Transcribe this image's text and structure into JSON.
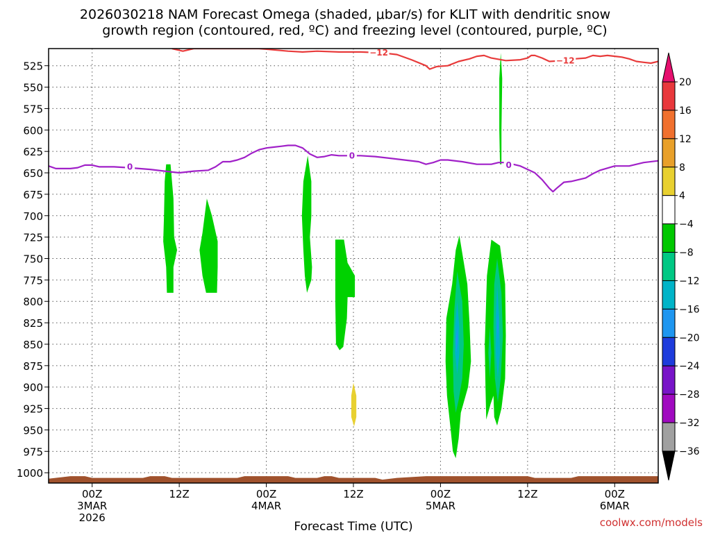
{
  "chart_data": {
    "type": "contour",
    "title_line1": "2026030218 NAM Forecast Omega (shaded, μbar/s) for KLIT with dendritic snow",
    "title_line2": "growth region (contoured, red, ºC) and freezing level (contoured, purple, ºC)",
    "xlabel": "Forecast Time (UTC)",
    "credit": "coolwx.com/models",
    "y_axis": {
      "scale": "pressure (hPa), increasing downward",
      "ylim": [
        505,
        1012
      ],
      "ticks": [
        525,
        550,
        575,
        600,
        625,
        650,
        675,
        700,
        725,
        750,
        775,
        800,
        825,
        850,
        875,
        900,
        925,
        950,
        975,
        1000
      ]
    },
    "x_axis": {
      "unit": "forecast hours from 2026-03-02 18Z",
      "xlim": [
        0,
        84
      ],
      "ticks": [
        {
          "x": 6,
          "lines": [
            "00Z",
            "3MAR",
            "2026"
          ]
        },
        {
          "x": 18,
          "lines": [
            "12Z"
          ]
        },
        {
          "x": 30,
          "lines": [
            "00Z",
            "4MAR"
          ]
        },
        {
          "x": 42,
          "lines": [
            "12Z"
          ]
        },
        {
          "x": 54,
          "lines": [
            "00Z",
            "5MAR"
          ]
        },
        {
          "x": 66,
          "lines": [
            "12Z"
          ]
        },
        {
          "x": 78,
          "lines": [
            "00Z",
            "6MAR"
          ]
        }
      ]
    },
    "grid": true,
    "colorbar": {
      "labels": [
        "20",
        "16",
        "12",
        "8",
        "4",
        "−4",
        "−8",
        "−12",
        "−16",
        "−20",
        "−24",
        "−28",
        "−32",
        "−36"
      ],
      "colors": [
        "#e60f6e",
        "#e8383c",
        "#f0702e",
        "#e8a02a",
        "#e8d030",
        "#ffffff",
        "#00c800",
        "#00c884",
        "#00b4c8",
        "#1e96f0",
        "#1e3cdc",
        "#7814c8",
        "#a00ac0",
        "#a0a0a0",
        "#000000"
      ]
    },
    "dgz_contour": {
      "label": "−12",
      "color": "#e83a3a",
      "points": [
        [
          17,
          505
        ],
        [
          18.5,
          508
        ],
        [
          20,
          505
        ],
        [
          29,
          505
        ],
        [
          33,
          508
        ],
        [
          35,
          509
        ],
        [
          37,
          508
        ],
        [
          40,
          509
        ],
        [
          43,
          509
        ],
        [
          46,
          510
        ],
        [
          48,
          512
        ],
        [
          50,
          518
        ],
        [
          52,
          525
        ],
        [
          52.5,
          529
        ],
        [
          53.5,
          526
        ],
        [
          55,
          525
        ],
        [
          56.5,
          520
        ],
        [
          58,
          517
        ],
        [
          59,
          514
        ],
        [
          60,
          513
        ],
        [
          61,
          516
        ],
        [
          63,
          519
        ],
        [
          65,
          518
        ],
        [
          66,
          516
        ],
        [
          66.5,
          513
        ],
        [
          67,
          513
        ],
        [
          68,
          516
        ],
        [
          69,
          520
        ],
        [
          71,
          519
        ],
        [
          72.5,
          517
        ],
        [
          74,
          516
        ],
        [
          75,
          513
        ],
        [
          76,
          514
        ],
        [
          77,
          513
        ],
        [
          79,
          515
        ],
        [
          80,
          517
        ],
        [
          81,
          520
        ],
        [
          82,
          521
        ],
        [
          83,
          522
        ],
        [
          84,
          520
        ]
      ],
      "label_positions": [
        [
          45.5,
          510
        ],
        [
          71.2,
          519
        ]
      ]
    },
    "freezing_level": {
      "label": "0",
      "color": "#a020c8",
      "points": [
        [
          0,
          642
        ],
        [
          1,
          645
        ],
        [
          3,
          645
        ],
        [
          4,
          644
        ],
        [
          5,
          641
        ],
        [
          6,
          641
        ],
        [
          7,
          643
        ],
        [
          9,
          643
        ],
        [
          11,
          644
        ],
        [
          14,
          646
        ],
        [
          16,
          648
        ],
        [
          18,
          650
        ],
        [
          20,
          648
        ],
        [
          22,
          647
        ],
        [
          23,
          643
        ],
        [
          24,
          637
        ],
        [
          25,
          637
        ],
        [
          26,
          635
        ],
        [
          27,
          632
        ],
        [
          28,
          627
        ],
        [
          29,
          623
        ],
        [
          30,
          621
        ],
        [
          31,
          620
        ],
        [
          32,
          619
        ],
        [
          33,
          618
        ],
        [
          34,
          618
        ],
        [
          35,
          621
        ],
        [
          36,
          628
        ],
        [
          37,
          632
        ],
        [
          38,
          631
        ],
        [
          39,
          629
        ],
        [
          40,
          630
        ],
        [
          41,
          630
        ],
        [
          43,
          630
        ],
        [
          45,
          631
        ],
        [
          47,
          633
        ],
        [
          49,
          635
        ],
        [
          51,
          637
        ],
        [
          52,
          640
        ],
        [
          53,
          638
        ],
        [
          54,
          635
        ],
        [
          55,
          635
        ],
        [
          57,
          637
        ],
        [
          59,
          640
        ],
        [
          61,
          640
        ],
        [
          62,
          638
        ],
        [
          63,
          638
        ],
        [
          64,
          640
        ],
        [
          65,
          642
        ],
        [
          66,
          646
        ],
        [
          67,
          650
        ],
        [
          68,
          658
        ],
        [
          69,
          668
        ],
        [
          69.5,
          672
        ],
        [
          70,
          668
        ],
        [
          71,
          661
        ],
        [
          72,
          660
        ],
        [
          74,
          656
        ],
        [
          75,
          651
        ],
        [
          76,
          647
        ],
        [
          78,
          642
        ],
        [
          80,
          642
        ],
        [
          82,
          638
        ],
        [
          84,
          636
        ]
      ],
      "label_positions": [
        [
          11.2,
          643
        ],
        [
          41.8,
          630
        ],
        [
          63.4,
          641
        ]
      ]
    },
    "omega_regions": [
      {
        "level": "-4 to -8",
        "color": "#00d200",
        "points": [
          [
            16.2,
            640
          ],
          [
            16.8,
            640
          ],
          [
            17.2,
            680
          ],
          [
            17.3,
            725
          ],
          [
            17.7,
            740
          ],
          [
            17.2,
            760
          ],
          [
            17.2,
            790
          ],
          [
            16.3,
            790
          ],
          [
            16.2,
            760
          ],
          [
            15.8,
            730
          ],
          [
            15.9,
            700
          ],
          [
            16.0,
            660
          ]
        ]
      },
      {
        "level": "-4 to -8",
        "color": "#00d200",
        "points": [
          [
            21.8,
            680
          ],
          [
            22.5,
            700
          ],
          [
            23.3,
            730
          ],
          [
            23.3,
            760
          ],
          [
            23.2,
            790
          ],
          [
            21.7,
            790
          ],
          [
            21.2,
            770
          ],
          [
            20.8,
            740
          ],
          [
            21.2,
            720
          ]
        ]
      },
      {
        "level": "-4 to -8",
        "color": "#00d200",
        "points": [
          [
            35.7,
            630
          ],
          [
            36.2,
            660
          ],
          [
            36.2,
            700
          ],
          [
            36.0,
            725
          ],
          [
            36.3,
            760
          ],
          [
            36.2,
            775
          ],
          [
            35.6,
            790
          ],
          [
            35.3,
            770
          ],
          [
            35.1,
            740
          ],
          [
            34.9,
            700
          ],
          [
            35.1,
            660
          ]
        ]
      },
      {
        "level": "-4 to -8",
        "color": "#00d200",
        "points": [
          [
            39.5,
            728
          ],
          [
            40.7,
            728
          ],
          [
            41.2,
            755
          ],
          [
            42.2,
            770
          ],
          [
            42.2,
            795
          ],
          [
            41.2,
            795
          ],
          [
            41.1,
            820
          ],
          [
            40.6,
            853
          ],
          [
            40.1,
            857
          ],
          [
            39.6,
            850
          ],
          [
            39.5,
            800
          ]
        ]
      },
      {
        "level": "-4 to -8",
        "color": "#00d200",
        "points": [
          [
            56.6,
            723
          ],
          [
            57.7,
            780
          ],
          [
            58.0,
            825
          ],
          [
            58.2,
            870
          ],
          [
            57.8,
            900
          ],
          [
            56.8,
            930
          ],
          [
            56.5,
            960
          ],
          [
            56.1,
            983
          ],
          [
            55.7,
            975
          ],
          [
            55.4,
            950
          ],
          [
            54.9,
            910
          ],
          [
            54.7,
            870
          ],
          [
            54.8,
            820
          ],
          [
            55.6,
            780
          ],
          [
            56.1,
            740
          ]
        ]
      },
      {
        "level": "-8 to -12",
        "color": "#00c884",
        "points": [
          [
            56.3,
            765
          ],
          [
            57.0,
            800
          ],
          [
            57.2,
            850
          ],
          [
            57.0,
            890
          ],
          [
            56.5,
            915
          ],
          [
            56.1,
            930
          ],
          [
            55.8,
            905
          ],
          [
            55.7,
            860
          ],
          [
            55.9,
            810
          ]
        ]
      },
      {
        "level": "-12 to -16",
        "color": "#00b4c8",
        "points": [
          [
            56.3,
            800
          ],
          [
            56.6,
            830
          ],
          [
            56.6,
            860
          ],
          [
            56.3,
            885
          ],
          [
            56.0,
            860
          ],
          [
            56.0,
            830
          ]
        ]
      },
      {
        "level": "-16 to -20",
        "color": "#1e96f0",
        "points": [
          [
            56.3,
            830
          ],
          [
            56.4,
            845
          ],
          [
            56.2,
            860
          ],
          [
            56.1,
            845
          ]
        ]
      },
      {
        "level": "-4 to -8",
        "color": "#00d200",
        "points": [
          [
            61.0,
            728
          ],
          [
            62.2,
            735
          ],
          [
            62.9,
            780
          ],
          [
            63.0,
            840
          ],
          [
            62.9,
            890
          ],
          [
            62.4,
            925
          ],
          [
            61.8,
            945
          ],
          [
            61.4,
            935
          ],
          [
            61.3,
            910
          ],
          [
            60.9,
            920
          ],
          [
            60.3,
            938
          ],
          [
            60.2,
            900
          ],
          [
            60.1,
            850
          ],
          [
            60.4,
            770
          ]
        ]
      },
      {
        "level": "-8 to -12",
        "color": "#00c884",
        "points": [
          [
            61.8,
            750
          ],
          [
            62.4,
            790
          ],
          [
            62.6,
            840
          ],
          [
            62.3,
            890
          ],
          [
            61.9,
            918
          ],
          [
            61.5,
            890
          ],
          [
            61.3,
            830
          ],
          [
            61.4,
            780
          ]
        ]
      },
      {
        "level": "-8 to -12",
        "color": "#00c884",
        "points": [
          [
            60.8,
            830
          ],
          [
            61.0,
            860
          ],
          [
            60.8,
            890
          ],
          [
            60.6,
            860
          ]
        ]
      },
      {
        "level": "-12 to -16",
        "color": "#00b4c8",
        "points": [
          [
            61.8,
            780
          ],
          [
            62.1,
            820
          ],
          [
            62.2,
            860
          ],
          [
            61.9,
            890
          ],
          [
            61.6,
            860
          ],
          [
            61.6,
            820
          ]
        ]
      },
      {
        "level": "-16 to -20",
        "color": "#1e96f0",
        "points": [
          [
            61.9,
            812
          ],
          [
            62.0,
            830
          ],
          [
            61.9,
            848
          ],
          [
            61.8,
            830
          ]
        ]
      },
      {
        "level": "-4 to -8",
        "color": "#00d200",
        "points": [
          [
            62.3,
            510
          ],
          [
            62.5,
            540
          ],
          [
            62.4,
            600
          ],
          [
            62.4,
            640
          ],
          [
            62.2,
            640
          ],
          [
            62.1,
            600
          ],
          [
            62.1,
            540
          ]
        ]
      },
      {
        "level": "4 to 8",
        "color": "#e8d030",
        "points": [
          [
            42.0,
            895
          ],
          [
            42.4,
            910
          ],
          [
            42.4,
            935
          ],
          [
            42.1,
            946
          ],
          [
            41.7,
            935
          ],
          [
            41.7,
            910
          ]
        ]
      }
    ],
    "terrain": {
      "color": "#a0522d",
      "top_edge": [
        [
          0,
          1007
        ],
        [
          2,
          1005
        ],
        [
          3,
          1004
        ],
        [
          5,
          1004
        ],
        [
          6,
          1006
        ],
        [
          13,
          1006
        ],
        [
          14,
          1004
        ],
        [
          16,
          1004
        ],
        [
          17,
          1006
        ],
        [
          26,
          1006
        ],
        [
          27,
          1004
        ],
        [
          33,
          1004
        ],
        [
          34,
          1006
        ],
        [
          37,
          1006
        ],
        [
          38,
          1004
        ],
        [
          39,
          1004
        ],
        [
          40,
          1006
        ],
        [
          45,
          1006
        ],
        [
          46,
          1008
        ],
        [
          48,
          1006
        ],
        [
          50,
          1005
        ],
        [
          52,
          1004
        ],
        [
          66,
          1004
        ],
        [
          67,
          1006
        ],
        [
          72,
          1006
        ],
        [
          73,
          1004
        ],
        [
          84,
          1004
        ]
      ]
    }
  }
}
